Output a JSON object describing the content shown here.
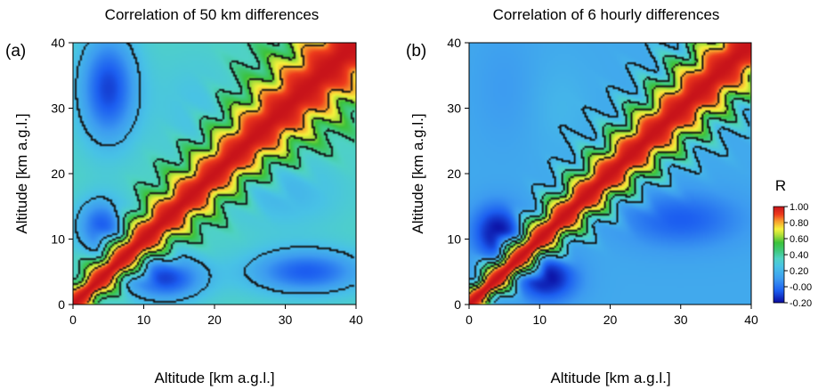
{
  "chart_data": [
    {
      "type": "heatmap",
      "panel_label": "(a)",
      "title": "Correlation of 50 km differences",
      "xlabel": "Altitude [km a.g.l.]",
      "ylabel": "Altitude [km a.g.l.]",
      "xlim": [
        0,
        40
      ],
      "ylim": [
        0,
        40
      ],
      "xticks": [
        "0",
        "10",
        "20",
        "30",
        "40"
      ],
      "yticks": [
        "0",
        "10",
        "20",
        "30",
        "40"
      ],
      "contour_levels": [
        0.2,
        0.4,
        0.6,
        0.8
      ],
      "background_r": 0.35,
      "diagonal_width": 1.2,
      "diagonal_growth": 0.07,
      "wave_amp": 0.25,
      "wave_period": 3.2,
      "features": [
        {
          "x": 5,
          "y": 33,
          "sx": 3,
          "sy": 6,
          "r": -0.1
        },
        {
          "x": 4,
          "y": 12,
          "sx": 2.5,
          "sy": 3,
          "r": -0.05
        },
        {
          "x": 13,
          "y": 4,
          "sx": 4,
          "sy": 2.5,
          "r": -0.1
        },
        {
          "x": 33,
          "y": 5,
          "sx": 6,
          "sy": 2.5,
          "r": -0.05
        },
        {
          "x": 17,
          "y": 30,
          "sx": 4,
          "sy": 6,
          "r": 0.25
        },
        {
          "x": 30,
          "y": 17,
          "sx": 6,
          "sy": 4,
          "r": 0.2
        }
      ]
    },
    {
      "type": "heatmap",
      "panel_label": "(b)",
      "title": "Correlation of 6 hourly differences",
      "xlabel": "Altitude [km a.g.l.]",
      "ylabel": "Altitude [km a.g.l.]",
      "xlim": [
        0,
        40
      ],
      "ylim": [
        0,
        40
      ],
      "xticks": [
        "0",
        "10",
        "20",
        "30",
        "40"
      ],
      "yticks": [
        "0",
        "10",
        "20",
        "30",
        "40"
      ],
      "contour_levels": [
        0.2,
        0.4,
        0.6,
        0.8
      ],
      "background_r": 0.15,
      "diagonal_width": 1.1,
      "diagonal_growth": 0.065,
      "wave_amp": 0.25,
      "wave_period": 3.2,
      "features": [
        {
          "x": 4,
          "y": 11,
          "sx": 2.5,
          "sy": 3,
          "r": -0.2
        },
        {
          "x": 11,
          "y": 4,
          "sx": 3,
          "sy": 2.5,
          "r": -0.2
        },
        {
          "x": 13,
          "y": 30,
          "sx": 3,
          "sy": 5,
          "r": 0.2
        },
        {
          "x": 30,
          "y": 13,
          "sx": 6,
          "sy": 3,
          "r": -0.05
        },
        {
          "x": 5,
          "y": 33,
          "sx": 3,
          "sy": 6,
          "r": 0.1
        }
      ]
    }
  ],
  "colorbar": {
    "title": "R",
    "range": [
      -0.2,
      1.0
    ],
    "tick_labels": [
      "1.00",
      "0.80",
      "0.60",
      "0.40",
      "0.20",
      "-0.00",
      "-0.20"
    ],
    "colors": [
      {
        "value": -0.2,
        "color": "#0a0a9e"
      },
      {
        "value": -0.05,
        "color": "#1c5ef0"
      },
      {
        "value": 0.1,
        "color": "#3d9cf0"
      },
      {
        "value": 0.25,
        "color": "#48c2e6"
      },
      {
        "value": 0.35,
        "color": "#4fd2c4"
      },
      {
        "value": 0.45,
        "color": "#3ec87a"
      },
      {
        "value": 0.55,
        "color": "#3cc23a"
      },
      {
        "value": 0.65,
        "color": "#b6e03a"
      },
      {
        "value": 0.72,
        "color": "#f6f23c"
      },
      {
        "value": 0.82,
        "color": "#f79a2c"
      },
      {
        "value": 0.9,
        "color": "#ee3b1c"
      },
      {
        "value": 1.0,
        "color": "#c8141a"
      }
    ]
  }
}
